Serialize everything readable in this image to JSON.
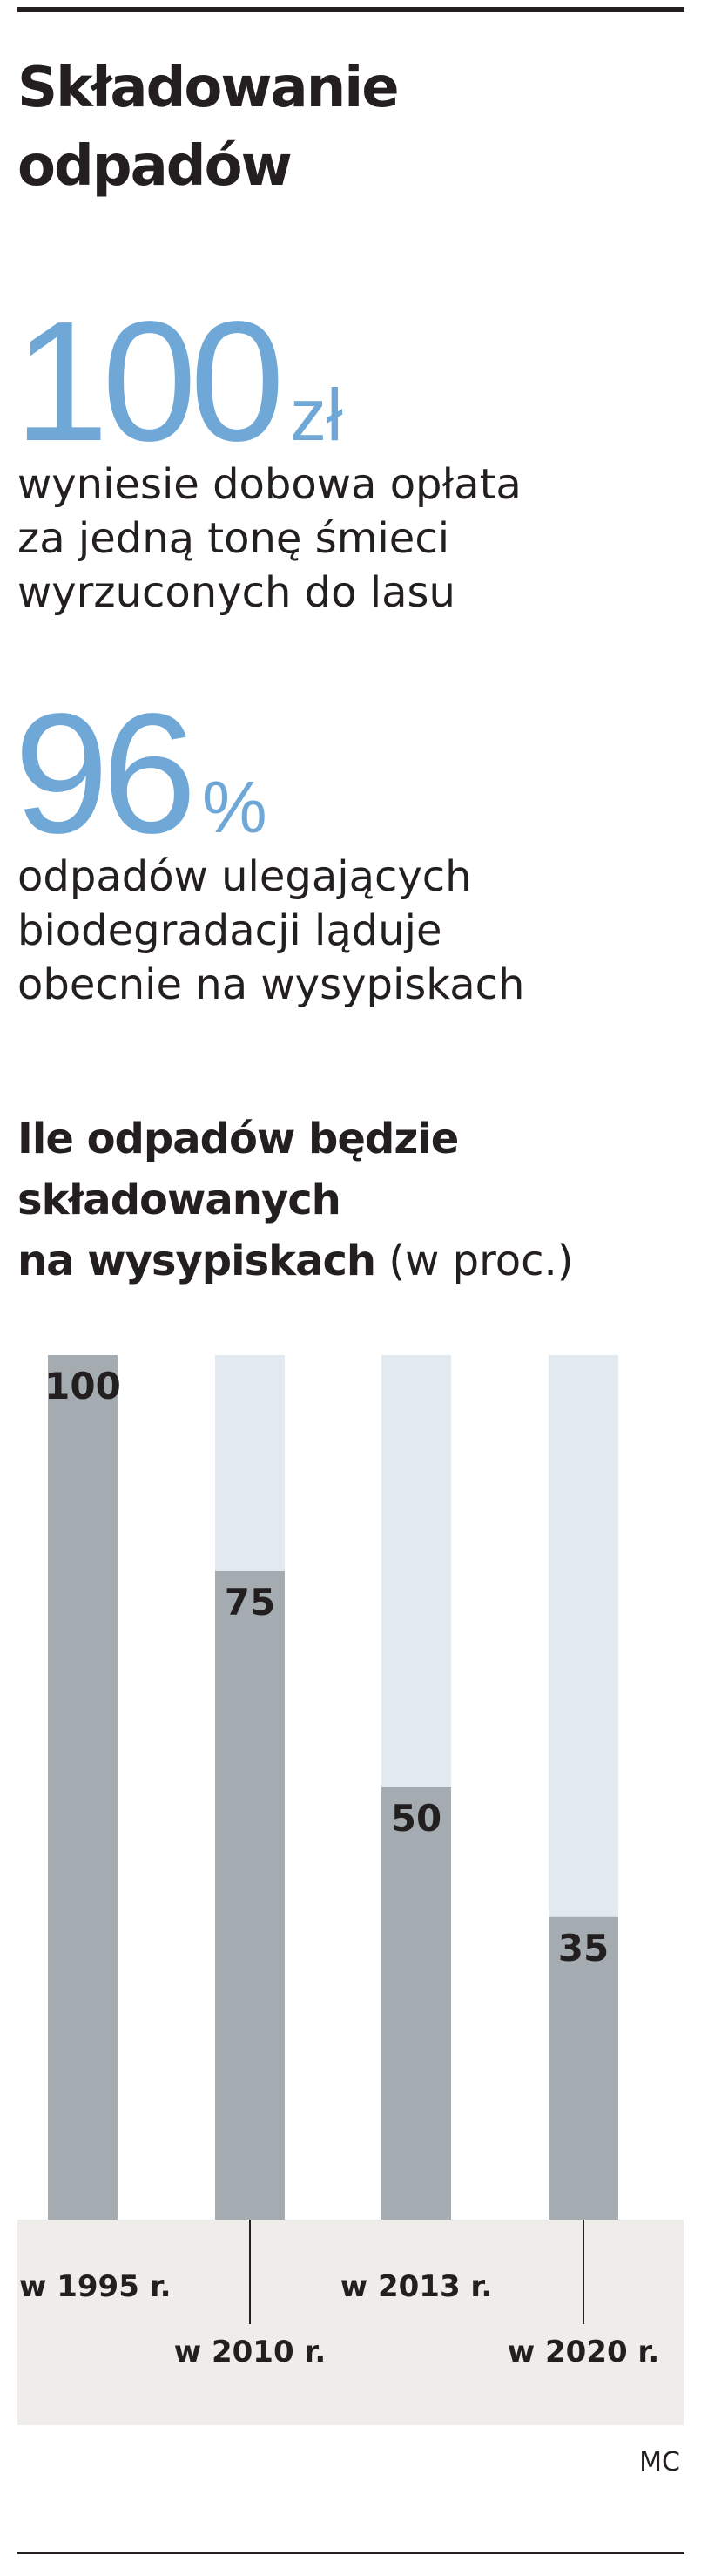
{
  "header": {
    "title_line1": "Składowanie",
    "title_line2": "odpadów"
  },
  "stats": [
    {
      "number": "100",
      "unit": "zł",
      "line1": "wyniesie dobowa opłata",
      "line2": "za jedną tonę śmieci",
      "line3": "wyrzuconych do lasu"
    },
    {
      "number": "96",
      "unit": "%",
      "line1": "odpadów ulegających",
      "line2": "biodegradacji ląduje",
      "line3": "obecnie na wysypiskach"
    }
  ],
  "chart_heading": {
    "line1": "Ile odpadów będzie",
    "line2": "składowanych",
    "line3_bold": "na wysypiskach",
    "line3_unit": " (w proc.)"
  },
  "colors": {
    "accent": "#6fa8d6",
    "bar_fill": "#a4abb1",
    "bar_track": "#e3e9f0",
    "label_band": "#efede9",
    "text": "#231f20"
  },
  "chart_data": {
    "type": "bar",
    "categories": [
      "w 1995 r.",
      "w 2010 r.",
      "w 2013 r.",
      "w 2020 r."
    ],
    "values": [
      100,
      75,
      50,
      35
    ],
    "value_labels": [
      "100",
      "75",
      "50",
      "35"
    ],
    "ylim": [
      0,
      100
    ],
    "grid": false,
    "legend": "none"
  },
  "credit": "MC"
}
